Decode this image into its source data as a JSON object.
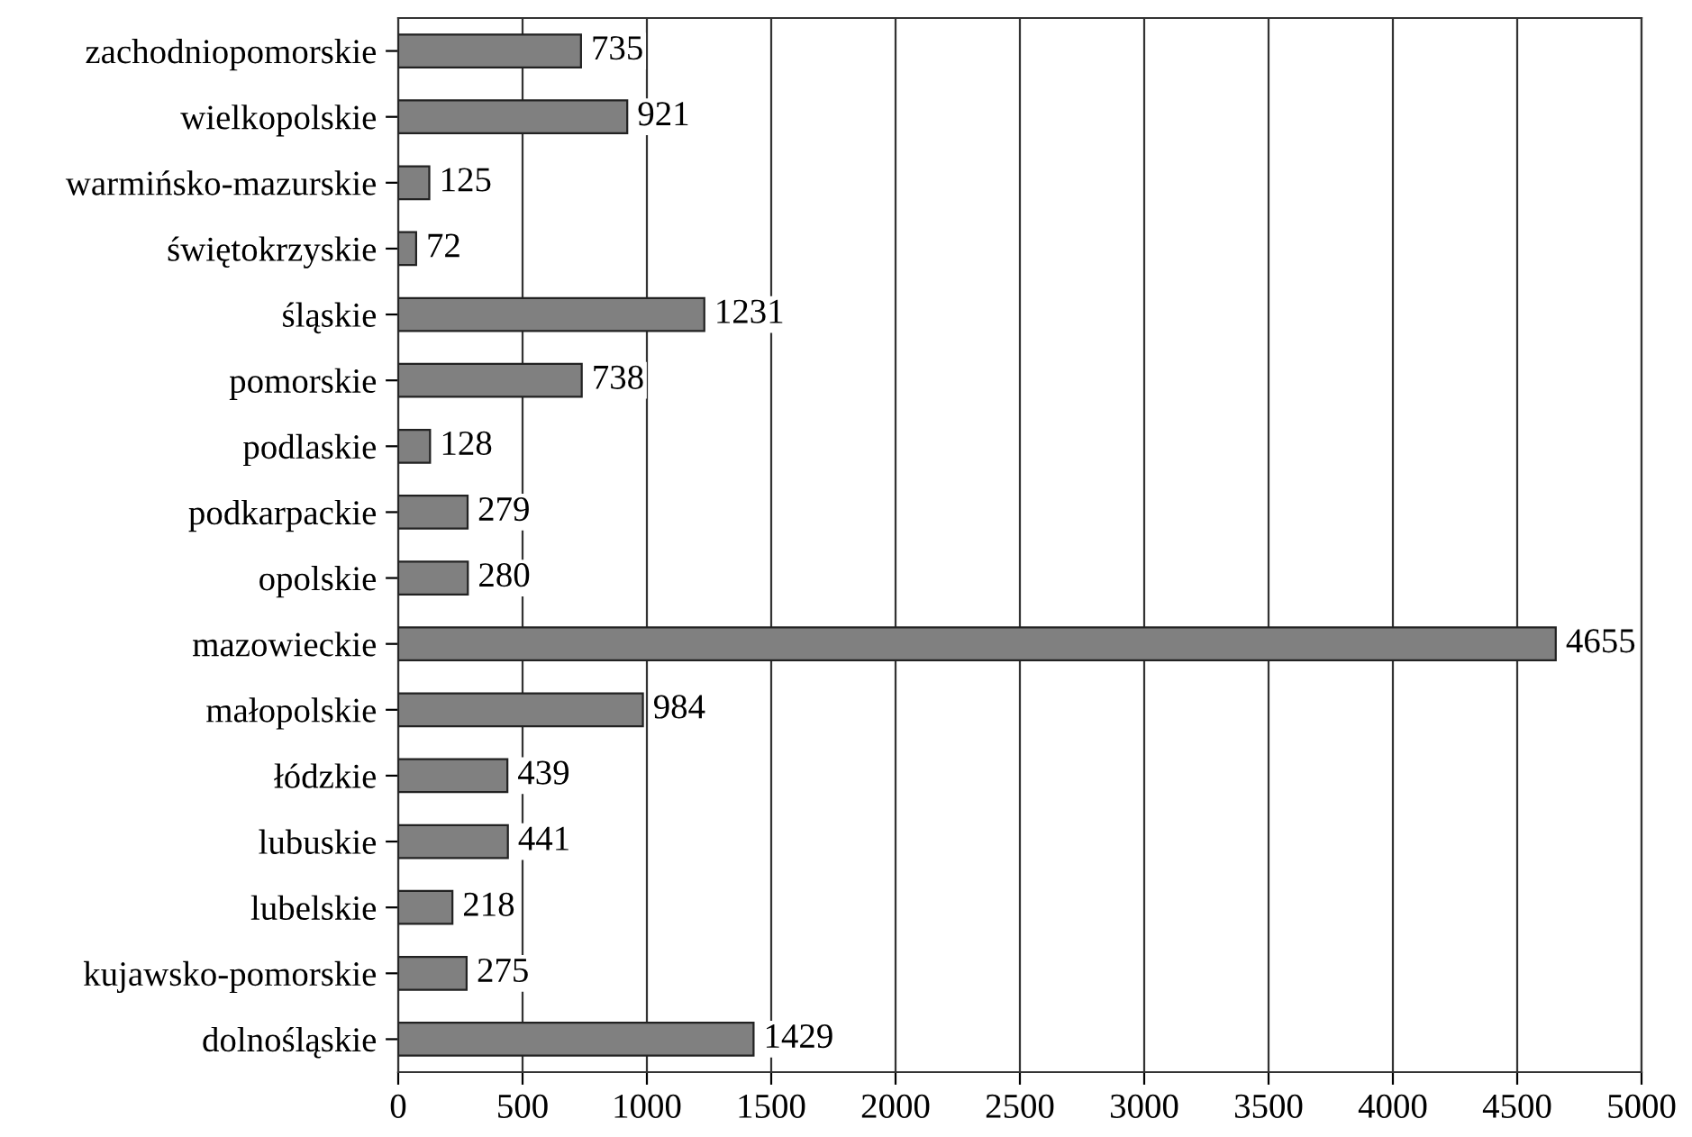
{
  "chart_data": {
    "type": "bar",
    "orientation": "horizontal",
    "categories": [
      "zachodniopomorskie",
      "wielkopolskie",
      "warmińsko-mazurskie",
      "świętokrzyskie",
      "śląskie",
      "pomorskie",
      "podlaskie",
      "podkarpackie",
      "opolskie",
      "mazowieckie",
      "małopolskie",
      "łódzkie",
      "lubuskie",
      "lubelskie",
      "kujawsko-pomorskie",
      "dolnośląskie"
    ],
    "values": [
      735,
      921,
      125,
      72,
      1231,
      738,
      128,
      279,
      280,
      4655,
      984,
      439,
      441,
      218,
      275,
      1429
    ],
    "color": "#808080",
    "data_labels": true,
    "xlim": [
      0,
      5000
    ],
    "xticks": [
      0,
      500,
      1000,
      1500,
      2000,
      2500,
      3000,
      3500,
      4000,
      4500,
      5000
    ],
    "grid": "x",
    "legend": false
  }
}
